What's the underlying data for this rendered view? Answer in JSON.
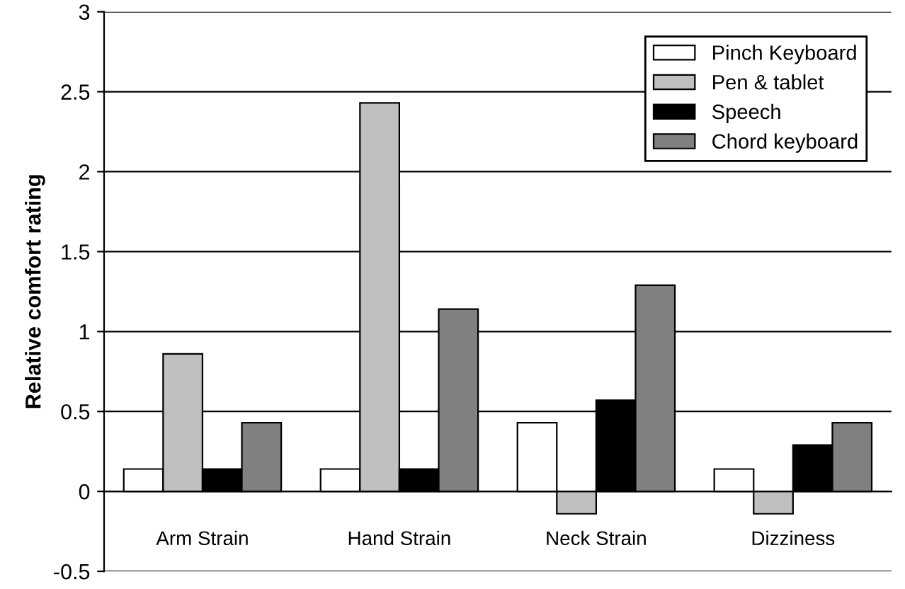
{
  "chart_data": {
    "type": "bar",
    "ylabel": "Relative comfort rating",
    "categories": [
      "Arm Strain",
      "Hand Strain",
      "Neck Strain",
      "Dizziness"
    ],
    "series": [
      {
        "name": "Pinch Keyboard",
        "color": "#ffffff",
        "values": [
          0.14,
          0.14,
          0.43,
          0.14
        ]
      },
      {
        "name": "Pen & tablet",
        "color": "#c0c0c0",
        "values": [
          0.86,
          2.43,
          -0.14,
          -0.14
        ]
      },
      {
        "name": "Speech",
        "color": "#000000",
        "values": [
          0.14,
          0.14,
          0.57,
          0.29
        ]
      },
      {
        "name": "Chord keyboard",
        "color": "#808080",
        "values": [
          0.43,
          1.14,
          1.29,
          0.43
        ]
      }
    ],
    "ylim": [
      -0.5,
      3
    ],
    "yticks": [
      -0.5,
      0,
      0.5,
      1,
      1.5,
      2,
      2.5,
      3
    ],
    "grid": "y",
    "legend": "top right"
  }
}
